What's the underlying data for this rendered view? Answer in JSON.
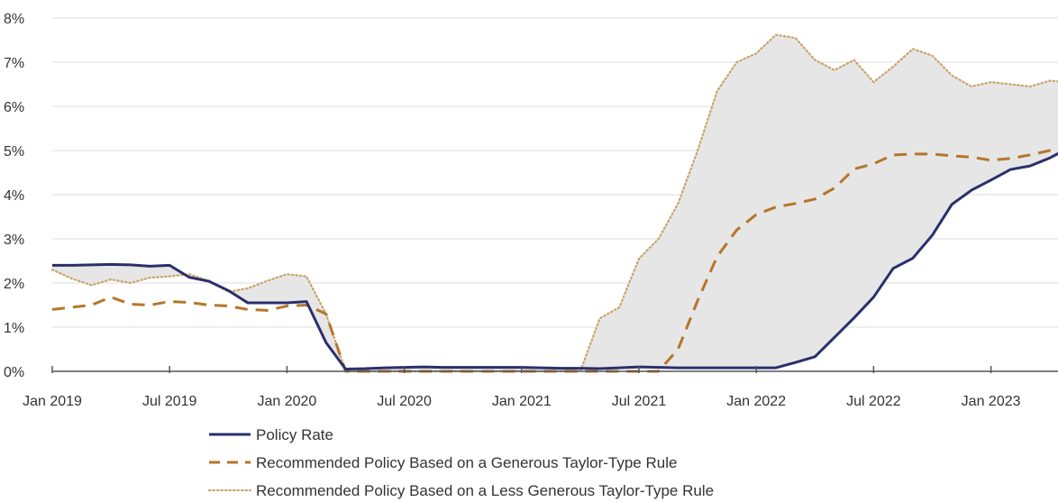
{
  "chart_data": {
    "type": "line",
    "title": "",
    "xlabel": "",
    "ylabel": "",
    "ylim": [
      0,
      8
    ],
    "grid": "horizontal",
    "legend_placement": "bottom",
    "y_ticks": [
      "0%",
      "1%",
      "2%",
      "3%",
      "4%",
      "5%",
      "6%",
      "7%",
      "8%"
    ],
    "y_tick_values": [
      0,
      1,
      2,
      3,
      4,
      5,
      6,
      7,
      8
    ],
    "x_ticks": [
      "Jan 2019",
      "Jul 2019",
      "Jan 2020",
      "Jul 2020",
      "Jan 2021",
      "Jul 2021",
      "Jan 2022",
      "Jul 2022",
      "Jan 2023"
    ],
    "x_tick_values": [
      "2019-01",
      "2019-07",
      "2020-01",
      "2020-07",
      "2021-01",
      "2021-07",
      "2022-01",
      "2022-07",
      "2023-01"
    ],
    "x_range": [
      "2019-01",
      "2023-06"
    ],
    "shaded_band": "between Policy Rate and less generous rule",
    "band_color": "#e6e6e6",
    "series": [
      {
        "name": "Policy Rate",
        "style": "solid",
        "color": "#2b2f6b",
        "x": [
          "2019-01",
          "2019-02",
          "2019-03",
          "2019-04",
          "2019-05",
          "2019-06",
          "2019-07",
          "2019-08",
          "2019-09",
          "2019-10",
          "2019-11",
          "2019-12",
          "2020-01",
          "2020-02",
          "2020-03",
          "2020-04",
          "2020-05",
          "2020-06",
          "2020-07",
          "2020-08",
          "2020-09",
          "2020-10",
          "2020-11",
          "2020-12",
          "2021-01",
          "2021-02",
          "2021-03",
          "2021-04",
          "2021-05",
          "2021-06",
          "2021-07",
          "2021-08",
          "2021-09",
          "2021-10",
          "2021-11",
          "2021-12",
          "2022-01",
          "2022-02",
          "2022-03",
          "2022-04",
          "2022-05",
          "2022-06",
          "2022-07",
          "2022-08",
          "2022-09",
          "2022-10",
          "2022-11",
          "2022-12",
          "2023-01",
          "2023-02",
          "2023-03",
          "2023-04",
          "2023-05",
          "2023-06"
        ],
        "values": [
          2.4,
          2.4,
          2.41,
          2.42,
          2.41,
          2.38,
          2.4,
          2.13,
          2.04,
          1.83,
          1.55,
          1.55,
          1.55,
          1.58,
          0.65,
          0.05,
          0.06,
          0.08,
          0.09,
          0.1,
          0.09,
          0.09,
          0.09,
          0.09,
          0.09,
          0.08,
          0.07,
          0.07,
          0.06,
          0.08,
          0.1,
          0.09,
          0.08,
          0.08,
          0.08,
          0.08,
          0.08,
          0.08,
          0.2,
          0.33,
          0.77,
          1.21,
          1.68,
          2.33,
          2.56,
          3.08,
          3.78,
          4.1,
          4.33,
          4.57,
          4.65,
          4.83,
          5.06,
          5.08
        ]
      },
      {
        "name": "Recommended Policy Based on a Generous Taylor-Type Rule",
        "style": "dashed",
        "color": "#b5762a",
        "x": [
          "2019-01",
          "2019-02",
          "2019-03",
          "2019-04",
          "2019-05",
          "2019-06",
          "2019-07",
          "2019-08",
          "2019-09",
          "2019-10",
          "2019-11",
          "2019-12",
          "2020-01",
          "2020-02",
          "2020-03",
          "2020-04",
          "2020-05",
          "2020-06",
          "2020-07",
          "2020-08",
          "2020-09",
          "2020-10",
          "2020-11",
          "2020-12",
          "2021-01",
          "2021-02",
          "2021-03",
          "2021-04",
          "2021-05",
          "2021-06",
          "2021-07",
          "2021-08",
          "2021-09",
          "2021-10",
          "2021-11",
          "2021-12",
          "2022-01",
          "2022-02",
          "2022-03",
          "2022-04",
          "2022-05",
          "2022-06",
          "2022-07",
          "2022-08",
          "2022-09",
          "2022-10",
          "2022-11",
          "2022-12",
          "2023-01",
          "2023-02",
          "2023-03",
          "2023-04",
          "2023-05",
          "2023-06"
        ],
        "values": [
          1.4,
          1.45,
          1.5,
          1.68,
          1.52,
          1.5,
          1.58,
          1.56,
          1.5,
          1.48,
          1.4,
          1.38,
          1.48,
          1.5,
          1.3,
          0.0,
          0.0,
          0.0,
          0.0,
          0.0,
          0.0,
          0.0,
          0.0,
          0.0,
          0.0,
          0.0,
          0.0,
          0.0,
          0.0,
          0.0,
          0.0,
          0.0,
          0.5,
          1.6,
          2.6,
          3.2,
          3.55,
          3.72,
          3.8,
          3.9,
          4.15,
          4.58,
          4.7,
          4.9,
          4.92,
          4.92,
          4.88,
          4.85,
          4.78,
          4.82,
          4.9,
          5.0,
          5.05,
          5.05
        ]
      },
      {
        "name": "Recommended Policy Based on a Less Generous Taylor-Type Rule",
        "style": "dotted",
        "color": "#c9a46a",
        "x": [
          "2019-01",
          "2019-02",
          "2019-03",
          "2019-04",
          "2019-05",
          "2019-06",
          "2019-07",
          "2019-08",
          "2019-09",
          "2019-10",
          "2019-11",
          "2019-12",
          "2020-01",
          "2020-02",
          "2020-03",
          "2020-04",
          "2020-05",
          "2020-06",
          "2020-07",
          "2020-08",
          "2020-09",
          "2020-10",
          "2020-11",
          "2020-12",
          "2021-01",
          "2021-02",
          "2021-03",
          "2021-04",
          "2021-05",
          "2021-06",
          "2021-07",
          "2021-08",
          "2021-09",
          "2021-10",
          "2021-11",
          "2021-12",
          "2022-01",
          "2022-02",
          "2022-03",
          "2022-04",
          "2022-05",
          "2022-06",
          "2022-07",
          "2022-08",
          "2022-09",
          "2022-10",
          "2022-11",
          "2022-12",
          "2023-01",
          "2023-02",
          "2023-03",
          "2023-04",
          "2023-05",
          "2023-06"
        ],
        "values": [
          2.3,
          2.1,
          1.95,
          2.08,
          2.0,
          2.12,
          2.15,
          2.2,
          2.05,
          1.8,
          1.88,
          2.05,
          2.2,
          2.15,
          1.3,
          0.0,
          0.0,
          0.0,
          0.0,
          0.0,
          0.0,
          0.0,
          0.0,
          0.0,
          0.0,
          0.0,
          0.0,
          0.0,
          1.2,
          1.45,
          2.55,
          3.0,
          3.8,
          5.0,
          6.35,
          7.0,
          7.2,
          7.62,
          7.55,
          7.05,
          6.82,
          7.05,
          6.55,
          6.9,
          7.3,
          7.15,
          6.7,
          6.45,
          6.55,
          6.5,
          6.45,
          6.58,
          6.55,
          6.55
        ]
      }
    ]
  }
}
